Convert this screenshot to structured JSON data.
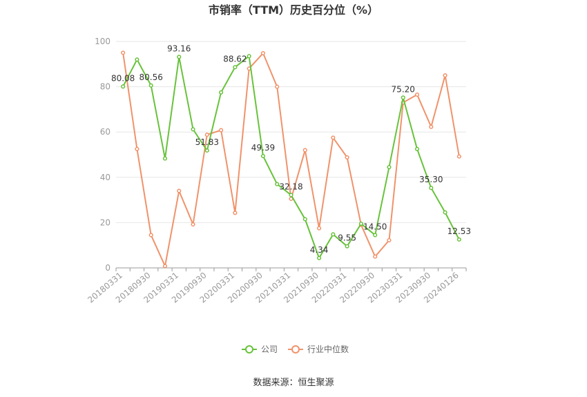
{
  "chart_data": {
    "type": "line",
    "title": "市销率（TTM）历史百分位（%）",
    "source": "数据来源：恒生聚源",
    "ylim": [
      0,
      100
    ],
    "yticks": [
      0,
      20,
      40,
      60,
      80,
      100
    ],
    "grid": true,
    "legend_position": "bottom",
    "x_tick_labels": [
      "20180331",
      "20180930",
      "20190331",
      "20190930",
      "20200331",
      "20200930",
      "20210331",
      "20210930",
      "20220331",
      "20220930",
      "20230331",
      "20230930",
      "20240126"
    ],
    "series": [
      {
        "name": "公司",
        "color": "#67c23a",
        "values": [
          80.08,
          92.0,
          80.56,
          48.3,
          93.16,
          61.2,
          51.83,
          77.5,
          88.62,
          93.5,
          49.39,
          37.0,
          32.18,
          21.5,
          4.34,
          14.8,
          9.55,
          19.5,
          14.5,
          44.5,
          75.2,
          52.5,
          35.3,
          24.5,
          12.53
        ]
      },
      {
        "name": "行业中位数",
        "color": "#f0926a",
        "values": [
          95.0,
          52.5,
          14.5,
          0.8,
          34.0,
          19.2,
          58.8,
          60.8,
          24.3,
          88.0,
          94.8,
          80.0,
          30.5,
          52.0,
          17.5,
          57.5,
          48.8,
          19.0,
          5.0,
          12.2,
          73.0,
          76.5,
          62.3,
          85.0,
          49.2
        ]
      }
    ],
    "data_labels": [
      {
        "index": 0,
        "text": "80.08"
      },
      {
        "index": 2,
        "text": "80.56"
      },
      {
        "index": 4,
        "text": "93.16"
      },
      {
        "index": 6,
        "text": "51.83"
      },
      {
        "index": 8,
        "text": "88.62"
      },
      {
        "index": 10,
        "text": "49.39"
      },
      {
        "index": 12,
        "text": "32.18"
      },
      {
        "index": 14,
        "text": "4.34"
      },
      {
        "index": 16,
        "text": "9.55"
      },
      {
        "index": 18,
        "text": "14.50"
      },
      {
        "index": 20,
        "text": "75.20"
      },
      {
        "index": 22,
        "text": "35.30"
      },
      {
        "index": 24,
        "text": "12.53"
      }
    ]
  }
}
